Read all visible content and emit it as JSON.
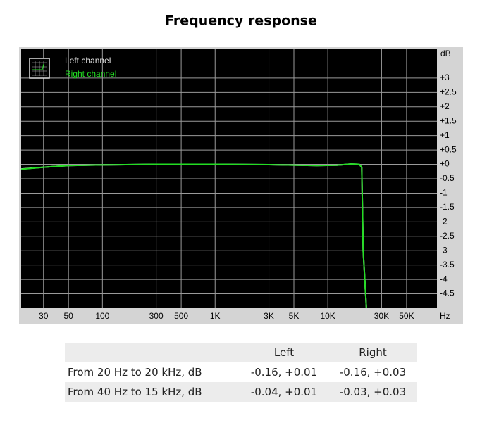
{
  "chart_data": {
    "type": "line",
    "title": "Frequency response",
    "x_unit": "Hz",
    "y_unit": "dB",
    "log_x": true,
    "grid": true,
    "x": [
      19,
      30,
      50,
      100,
      300,
      1000,
      3000,
      8000,
      12000,
      16000,
      19000,
      20000,
      20600,
      22000
    ],
    "series": [
      {
        "name": "Left channel",
        "color": "#e0e0e0",
        "values": [
          -0.16,
          -0.1,
          -0.04,
          -0.02,
          0,
          0,
          -0.01,
          -0.04,
          -0.03,
          0.01,
          0,
          -0.1,
          -3,
          -5
        ]
      },
      {
        "name": "Right channel",
        "color": "#22dd22",
        "values": [
          -0.17,
          -0.1,
          -0.04,
          -0.02,
          0,
          0,
          -0.01,
          -0.04,
          -0.03,
          0.01,
          0,
          -0.1,
          -3,
          -5
        ]
      }
    ],
    "xlim": [
      19,
      93000
    ],
    "ylim": [
      -5,
      4
    ],
    "xticks": [
      30,
      50,
      100,
      300,
      500,
      {
        "value": 1000,
        "label": "1K"
      },
      {
        "value": 3000,
        "label": "3K"
      },
      {
        "value": 5000,
        "label": "5K"
      },
      {
        "value": 10000,
        "label": "10K"
      },
      {
        "value": 30000,
        "label": "30K"
      },
      {
        "value": 50000,
        "label": "50K"
      }
    ],
    "yticks": [
      {
        "value": 3,
        "label": "+3"
      },
      {
        "value": 2.5,
        "label": "+2.5"
      },
      {
        "value": 2,
        "label": "+2"
      },
      {
        "value": 1.5,
        "label": "+1.5"
      },
      {
        "value": 1,
        "label": "+1"
      },
      {
        "value": 0.5,
        "label": "+0.5"
      },
      {
        "value": 0,
        "label": "+0"
      },
      -0.5,
      -1,
      -1.5,
      -2,
      -2.5,
      -3,
      -3.5,
      -4,
      -4.5
    ]
  },
  "table": {
    "header": [
      "Left",
      "Right"
    ],
    "rows": [
      [
        "From 20 Hz to 20 kHz, dB",
        "-0.16, +0.01",
        "-0.16, +0.03"
      ],
      [
        "From 40 Hz to 15 kHz, dB",
        "-0.04, +0.01",
        "-0.03, +0.03"
      ]
    ]
  }
}
